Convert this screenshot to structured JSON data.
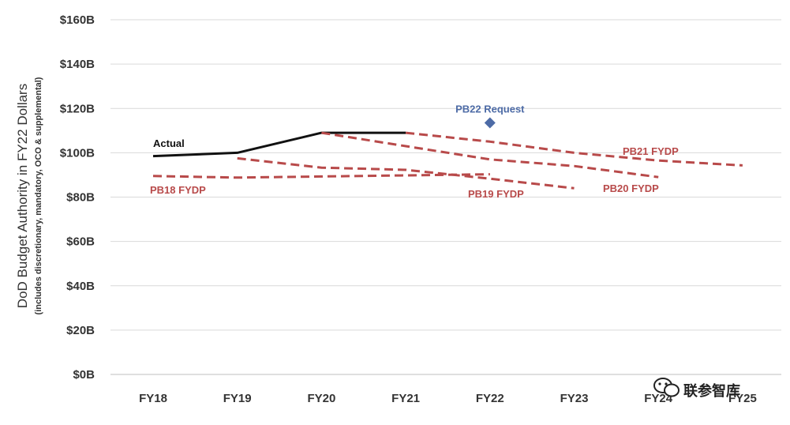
{
  "chart_data": {
    "type": "line",
    "categories": [
      "FY18",
      "FY19",
      "FY20",
      "FY21",
      "FY22",
      "FY23",
      "FY24",
      "FY25"
    ],
    "yticks": [
      "$0B",
      "$20B",
      "$40B",
      "$60B",
      "$80B",
      "$100B",
      "$120B",
      "$140B",
      "$160B"
    ],
    "ylim": [
      0,
      160
    ],
    "ylabel": "DoD Budget Authority in FY22 Dollars",
    "ylabel_sub": "(includes discretionary, mandatory, OCO & supplemental)",
    "grid": true,
    "series": [
      {
        "name": "Actual",
        "color": "#111111",
        "dashed": false,
        "points": [
          [
            "FY18",
            98.5
          ],
          [
            "FY19",
            100
          ],
          [
            "FY20",
            109
          ],
          [
            "FY21",
            109
          ]
        ]
      },
      {
        "name": "PB18 FYDP",
        "color": "#b84a4a",
        "dashed": true,
        "points": [
          [
            "FY18",
            89.5
          ],
          [
            "FY19",
            88.8
          ],
          [
            "FY20",
            89.3
          ],
          [
            "FY21",
            89.8
          ],
          [
            "FY22",
            90.3
          ]
        ]
      },
      {
        "name": "PB19 FYDP",
        "color": "#b84a4a",
        "dashed": true,
        "points": [
          [
            "FY19",
            97.5
          ],
          [
            "FY20",
            93.3
          ],
          [
            "FY21",
            92.3
          ],
          [
            "FY22",
            88.3
          ],
          [
            "FY23",
            84
          ]
        ]
      },
      {
        "name": "PB20 FYDP",
        "color": "#b84a4a",
        "dashed": true,
        "points": [
          [
            "FY20",
            109
          ],
          [
            "FY21",
            103
          ],
          [
            "FY22",
            97
          ],
          [
            "FY23",
            94
          ],
          [
            "FY24",
            89
          ]
        ]
      },
      {
        "name": "PB21 FYDP",
        "color": "#b84a4a",
        "dashed": true,
        "points": [
          [
            "FY21",
            109
          ],
          [
            "FY22",
            105
          ],
          [
            "FY23",
            100
          ],
          [
            "FY24",
            96.5
          ],
          [
            "FY25",
            94.3
          ]
        ]
      }
    ],
    "markers": [
      {
        "name": "PB22 Request",
        "color": "#4d6ba6",
        "x": "FY22",
        "y": 113.5
      }
    ]
  },
  "watermark": {
    "text": "联参智库"
  }
}
